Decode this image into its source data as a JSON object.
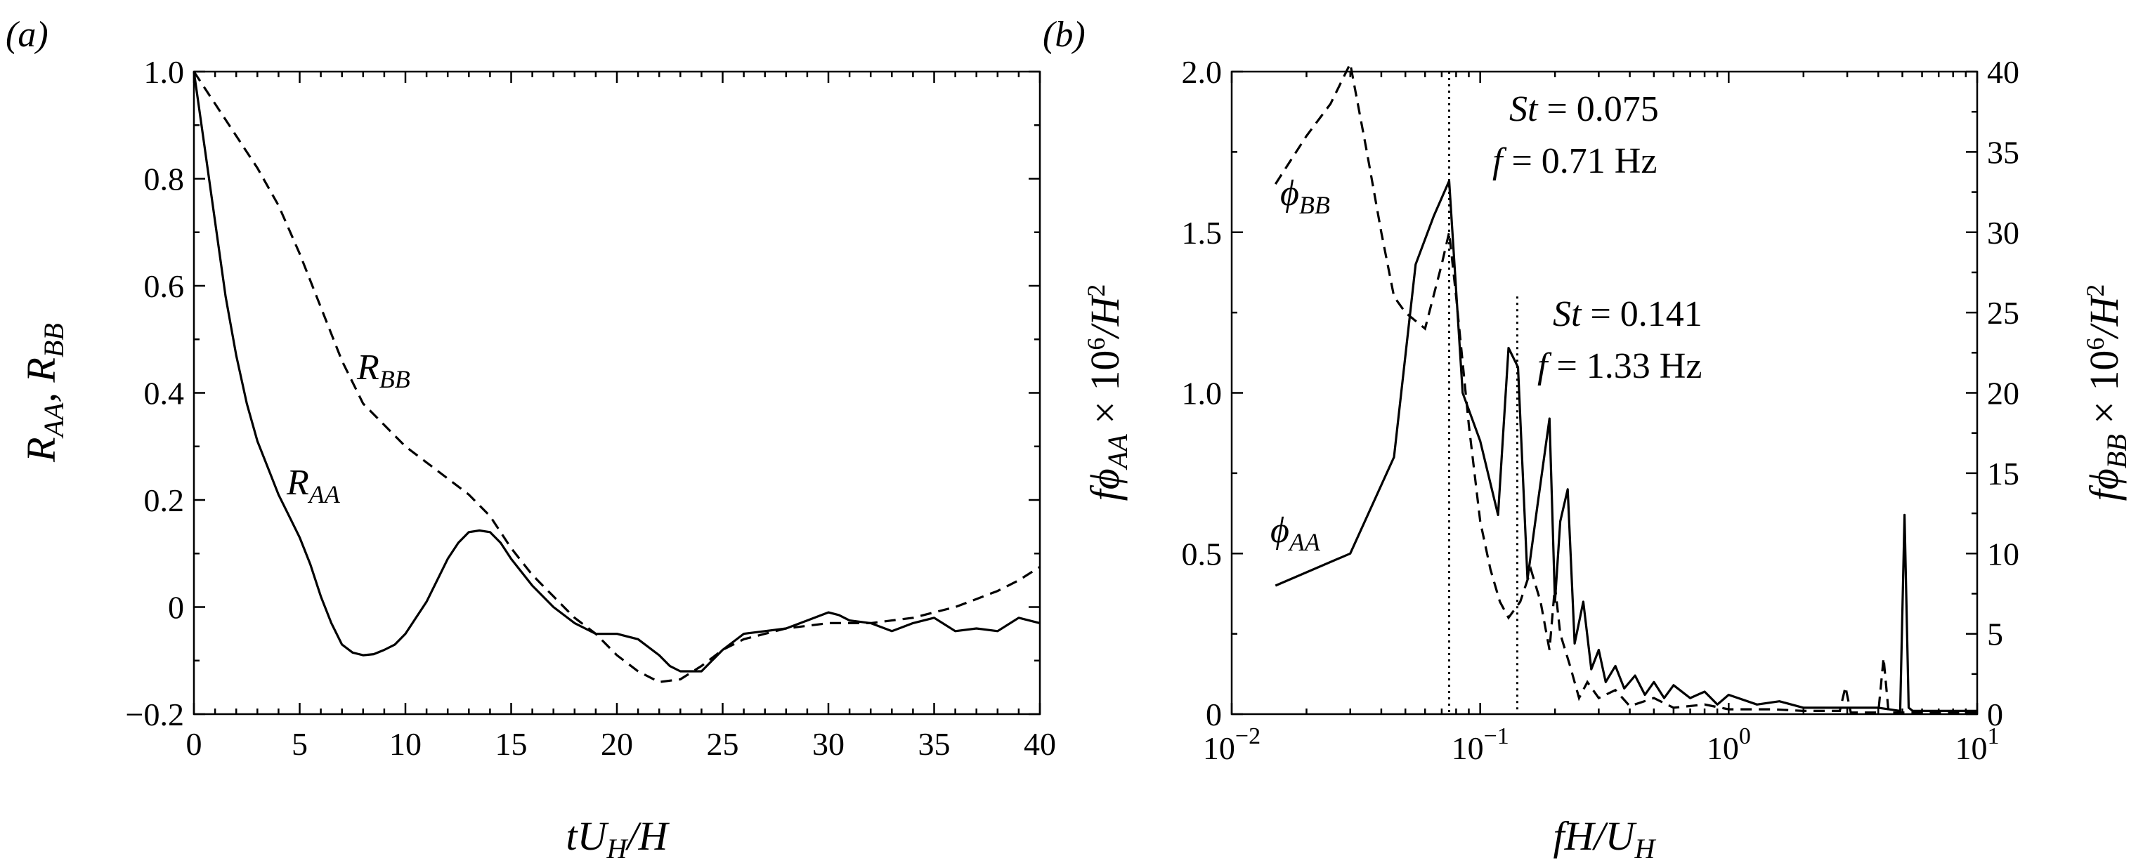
{
  "chart_data": [
    {
      "panel": "(a)",
      "type": "line",
      "xlabel_parts": [
        "tU",
        "H",
        "/H"
      ],
      "ylabel_parts": [
        "R",
        "AA",
        ", R",
        "BB"
      ],
      "xlim": [
        0,
        40
      ],
      "ylim": [
        -0.2,
        1.0
      ],
      "xticks": [
        0,
        5,
        10,
        15,
        20,
        25,
        30,
        35,
        40
      ],
      "xtick_labels": [
        "0",
        "5",
        "10",
        "15",
        "20",
        "25",
        "30",
        "35",
        "40"
      ],
      "yticks": [
        -0.2,
        0,
        0.2,
        0.4,
        0.6,
        0.8,
        1.0
      ],
      "ytick_labels": [
        "−0.2",
        "0",
        "0.2",
        "0.4",
        "0.6",
        "0.8",
        "1.0"
      ],
      "series": [
        {
          "name": "R_AA",
          "style": "solid",
          "label_main": "R",
          "label_sub": "AA",
          "x": [
            0,
            0.5,
            1,
            1.5,
            2,
            2.5,
            3,
            3.5,
            4,
            4.5,
            5,
            5.5,
            6,
            6.5,
            7,
            7.5,
            8,
            8.5,
            9,
            9.5,
            10,
            11,
            12,
            12.5,
            13,
            13.5,
            14,
            14.5,
            15,
            16,
            17,
            18,
            19,
            20,
            21,
            22,
            22.5,
            23,
            23.5,
            24,
            25,
            26,
            27,
            28,
            29,
            30,
            30.5,
            31,
            32,
            33,
            34,
            35,
            36,
            37,
            38,
            39,
            40
          ],
          "values": [
            1.0,
            0.86,
            0.72,
            0.58,
            0.47,
            0.38,
            0.31,
            0.26,
            0.21,
            0.17,
            0.13,
            0.08,
            0.02,
            -0.03,
            -0.07,
            -0.085,
            -0.09,
            -0.088,
            -0.08,
            -0.07,
            -0.05,
            0.01,
            0.09,
            0.12,
            0.14,
            0.143,
            0.14,
            0.12,
            0.09,
            0.04,
            0.0,
            -0.03,
            -0.05,
            -0.05,
            -0.06,
            -0.09,
            -0.11,
            -0.12,
            -0.12,
            -0.12,
            -0.08,
            -0.05,
            -0.045,
            -0.04,
            -0.025,
            -0.01,
            -0.015,
            -0.025,
            -0.03,
            -0.045,
            -0.03,
            -0.02,
            -0.045,
            -0.04,
            -0.045,
            -0.02,
            -0.03
          ]
        },
        {
          "name": "R_BB",
          "style": "dashed",
          "label_main": "R",
          "label_sub": "BB",
          "x": [
            0,
            1,
            2,
            3,
            4,
            5,
            6,
            7,
            8,
            9,
            10,
            11,
            12,
            13,
            14,
            15,
            16,
            17,
            18,
            19,
            20,
            21,
            22,
            23,
            24,
            25,
            26,
            27,
            28,
            29,
            30,
            31,
            32,
            33,
            34,
            35,
            36,
            37,
            38,
            39,
            40
          ],
          "values": [
            1.0,
            0.94,
            0.88,
            0.82,
            0.75,
            0.66,
            0.56,
            0.46,
            0.38,
            0.34,
            0.3,
            0.27,
            0.24,
            0.21,
            0.17,
            0.11,
            0.06,
            0.02,
            -0.02,
            -0.05,
            -0.09,
            -0.12,
            -0.14,
            -0.135,
            -0.11,
            -0.08,
            -0.06,
            -0.05,
            -0.04,
            -0.035,
            -0.03,
            -0.03,
            -0.03,
            -0.025,
            -0.02,
            -0.01,
            0.0,
            0.015,
            0.03,
            0.05,
            0.075
          ]
        }
      ]
    },
    {
      "panel": "(b)",
      "type": "line",
      "xscale": "log",
      "xlabel_parts": [
        "fH/U",
        "H"
      ],
      "ylabel_left_parts": [
        "fϕ",
        "AA",
        " × 10",
        "6",
        "/H",
        "2"
      ],
      "ylabel_right_parts": [
        "fϕ",
        "BB",
        " × 10",
        "6",
        "/H",
        "2"
      ],
      "xlim": [
        0.01,
        10
      ],
      "ylim_left": [
        0,
        2.0
      ],
      "ylim_right": [
        0,
        40
      ],
      "xticks": [
        0.01,
        0.1,
        1,
        10
      ],
      "xtick_base": "10",
      "xtick_exps": [
        "−2",
        "−1",
        "0",
        "1"
      ],
      "yticks_left": [
        0,
        0.5,
        1.0,
        1.5,
        2.0
      ],
      "ytick_labels_left": [
        "0",
        "0.5",
        "1.0",
        "1.5",
        "2.0"
      ],
      "yticks_right": [
        0,
        5,
        10,
        15,
        20,
        25,
        30,
        35,
        40
      ],
      "ytick_labels_right": [
        "0",
        "5",
        "10",
        "15",
        "20",
        "25",
        "30",
        "35",
        "40"
      ],
      "series": [
        {
          "name": "phi_AA",
          "style": "solid",
          "axis": "left",
          "label_main": "ϕ",
          "label_sub": "AA",
          "x": [
            0.015,
            0.03,
            0.045,
            0.055,
            0.065,
            0.075,
            0.085,
            0.1,
            0.118,
            0.13,
            0.142,
            0.155,
            0.17,
            0.19,
            0.2,
            0.21,
            0.225,
            0.24,
            0.26,
            0.28,
            0.3,
            0.32,
            0.35,
            0.38,
            0.42,
            0.46,
            0.5,
            0.55,
            0.6,
            0.7,
            0.8,
            0.9,
            1.0,
            1.3,
            1.6,
            2.0,
            3.0,
            4.0,
            4.9,
            5.1,
            5.3,
            5.5,
            6.5,
            8.0,
            10.0
          ],
          "values": [
            0.4,
            0.5,
            0.8,
            1.4,
            1.55,
            1.66,
            1.0,
            0.85,
            0.62,
            1.14,
            1.08,
            0.42,
            0.65,
            0.92,
            0.35,
            0.6,
            0.7,
            0.22,
            0.35,
            0.14,
            0.2,
            0.1,
            0.15,
            0.08,
            0.12,
            0.06,
            0.1,
            0.05,
            0.09,
            0.05,
            0.07,
            0.03,
            0.06,
            0.03,
            0.04,
            0.02,
            0.02,
            0.02,
            0.01,
            0.62,
            0.02,
            0.01,
            0.01,
            0.01,
            0.01
          ]
        },
        {
          "name": "phi_BB",
          "style": "dashed",
          "axis": "right",
          "label_main": "ϕ",
          "label_sub": "BB",
          "x": [
            0.015,
            0.02,
            0.025,
            0.03,
            0.035,
            0.04,
            0.045,
            0.05,
            0.06,
            0.07,
            0.075,
            0.08,
            0.09,
            0.1,
            0.11,
            0.12,
            0.13,
            0.145,
            0.16,
            0.175,
            0.19,
            0.2,
            0.21,
            0.23,
            0.25,
            0.27,
            0.3,
            0.35,
            0.4,
            0.5,
            0.6,
            0.8,
            1.0,
            1.5,
            2.0,
            2.8,
            2.95,
            3.1,
            4.0,
            4.2,
            4.4,
            6.0,
            10.0
          ],
          "values": [
            33,
            36,
            38,
            40.5,
            35,
            30,
            26,
            25,
            24,
            28,
            30,
            26,
            18,
            12,
            9,
            7,
            6,
            7,
            9,
            7,
            4,
            8,
            5,
            3,
            1,
            2,
            1,
            1.5,
            0.5,
            1,
            0.4,
            0.6,
            0.3,
            0.3,
            0.2,
            0.2,
            1.7,
            0.1,
            0.1,
            3.5,
            0.1,
            0.1,
            0.1
          ]
        }
      ],
      "annotations": [
        {
          "St_prefix": "St",
          "St_value": " = 0.075",
          "f_prefix": "f",
          "f_value": " = 0.71 Hz",
          "x": 0.075
        },
        {
          "St_prefix": "St",
          "St_value": " = 0.141",
          "f_prefix": "f",
          "f_value": " = 1.33 Hz",
          "x": 0.141
        }
      ]
    }
  ]
}
